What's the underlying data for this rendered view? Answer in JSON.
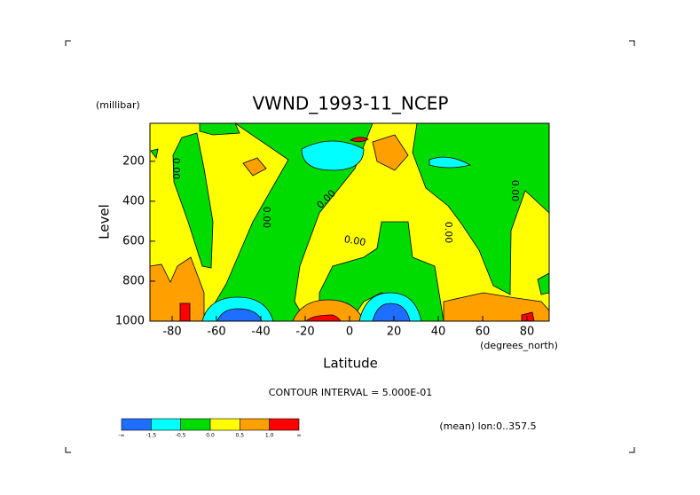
{
  "chart_data": {
    "type": "contour",
    "title": "VWND_1993-11_NCEP",
    "x_label": "Latitude",
    "x_units": "(degrees_north)",
    "y_label": "Level",
    "y_units": "(millibar)",
    "xlim": [
      -90,
      90
    ],
    "xticks": [
      -80,
      -60,
      -40,
      -20,
      0,
      20,
      40,
      60,
      80
    ],
    "ylim": [
      1000,
      10
    ],
    "yticks": [
      200,
      400,
      600,
      800,
      1000
    ],
    "annotation": "CONTOUR INTERVAL = 5.000E-01",
    "footer": "(mean) lon:0..357.5",
    "contour_labels": [
      "0.00",
      "0.00",
      "0.00",
      "0.00",
      "0.00",
      "0.00"
    ],
    "colorbar": {
      "colors": [
        "#1e6eff",
        "#00ffff",
        "#00dc00",
        "#ffff00",
        "#ffa000",
        "#ff0000"
      ],
      "labels": [
        "-∞",
        "-1.5",
        "-0.5",
        "0.0",
        "0.5",
        "1.0",
        "∞"
      ]
    }
  }
}
